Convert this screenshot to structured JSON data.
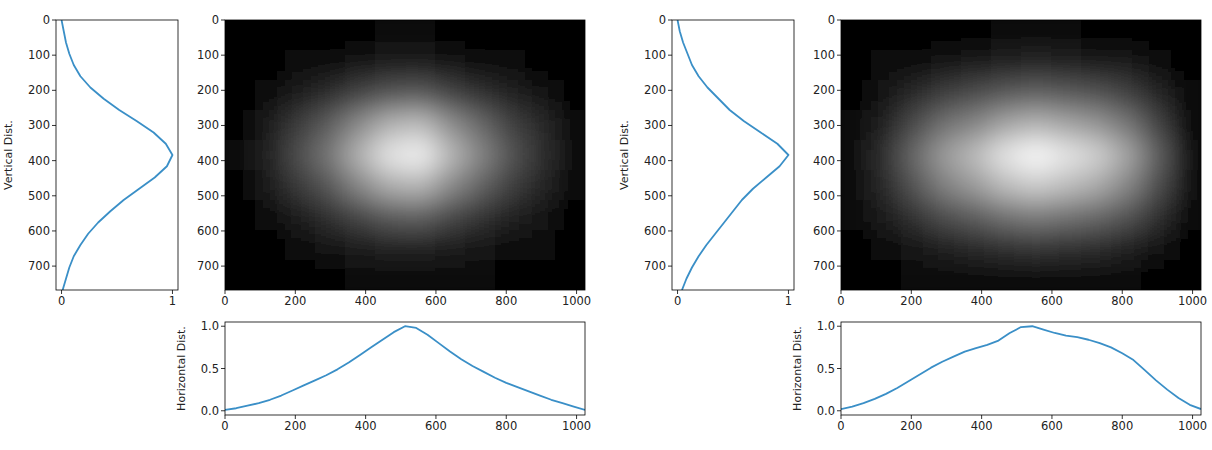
{
  "chart_data": [
    {
      "type": "line",
      "ylabel": "Vertical Dist.",
      "color": "#3a8fc7",
      "y": [
        0,
        32,
        64,
        96,
        128,
        160,
        192,
        224,
        256,
        288,
        320,
        352,
        384,
        416,
        448,
        480,
        512,
        544,
        576,
        608,
        640,
        672,
        704,
        736,
        768
      ],
      "values": [
        0.0,
        0.02,
        0.04,
        0.07,
        0.11,
        0.17,
        0.26,
        0.38,
        0.52,
        0.68,
        0.83,
        0.94,
        1.0,
        0.95,
        0.84,
        0.7,
        0.56,
        0.44,
        0.33,
        0.24,
        0.17,
        0.11,
        0.07,
        0.04,
        0.01
      ],
      "xlim": [
        -0.05,
        1.05
      ],
      "xticks": [
        0,
        1
      ],
      "ylim": [
        0,
        768
      ],
      "yticks": [
        0,
        100,
        200,
        300,
        400,
        500,
        600,
        700
      ]
    },
    {
      "type": "heatmap",
      "xlim": [
        0,
        1024
      ],
      "xticks": [
        0,
        200,
        400,
        600,
        800,
        1000
      ],
      "ylim": [
        0,
        768
      ],
      "yticks": [
        0,
        100,
        200,
        300,
        400,
        500,
        600,
        700
      ],
      "zlim": [
        0,
        1
      ],
      "cells": [
        [
          0.0,
          0.0,
          0.01,
          0.01,
          0.02,
          0.03,
          0.03,
          0.02,
          0.02,
          0.01,
          0.01,
          0.0
        ],
        [
          0.0,
          0.02,
          0.04,
          0.06,
          0.08,
          0.11,
          0.11,
          0.09,
          0.06,
          0.04,
          0.02,
          0.01
        ],
        [
          0.01,
          0.05,
          0.12,
          0.18,
          0.27,
          0.34,
          0.36,
          0.27,
          0.2,
          0.13,
          0.08,
          0.02
        ],
        [
          0.02,
          0.1,
          0.24,
          0.37,
          0.55,
          0.7,
          0.74,
          0.56,
          0.41,
          0.26,
          0.16,
          0.04
        ],
        [
          0.03,
          0.13,
          0.31,
          0.47,
          0.7,
          0.9,
          0.95,
          0.72,
          0.52,
          0.33,
          0.2,
          0.05
        ],
        [
          0.02,
          0.1,
          0.23,
          0.35,
          0.53,
          0.68,
          0.71,
          0.54,
          0.39,
          0.25,
          0.15,
          0.04
        ],
        [
          0.01,
          0.05,
          0.12,
          0.19,
          0.28,
          0.36,
          0.38,
          0.29,
          0.21,
          0.13,
          0.08,
          0.02
        ],
        [
          0.0,
          0.02,
          0.05,
          0.07,
          0.11,
          0.14,
          0.14,
          0.11,
          0.08,
          0.05,
          0.03,
          0.01
        ],
        [
          0.0,
          0.01,
          0.02,
          0.02,
          0.04,
          0.05,
          0.05,
          0.04,
          0.03,
          0.02,
          0.01,
          0.0
        ]
      ]
    },
    {
      "type": "line",
      "ylabel": "Horizontal Dist.",
      "color": "#3a8fc7",
      "x": [
        0,
        32,
        64,
        96,
        128,
        160,
        192,
        224,
        256,
        288,
        320,
        352,
        384,
        416,
        448,
        480,
        512,
        544,
        576,
        608,
        640,
        672,
        704,
        736,
        768,
        800,
        832,
        864,
        896,
        928,
        960,
        992,
        1024
      ],
      "values": [
        0.01,
        0.03,
        0.06,
        0.09,
        0.13,
        0.18,
        0.24,
        0.3,
        0.36,
        0.42,
        0.49,
        0.57,
        0.66,
        0.75,
        0.84,
        0.93,
        1.0,
        0.98,
        0.9,
        0.8,
        0.7,
        0.61,
        0.53,
        0.46,
        0.39,
        0.33,
        0.28,
        0.23,
        0.18,
        0.13,
        0.09,
        0.05,
        0.01
      ],
      "xlim": [
        0,
        1024
      ],
      "xticks": [
        0,
        200,
        400,
        600,
        800,
        1000
      ],
      "ylim": [
        -0.05,
        1.05
      ],
      "yticks": [
        {
          "value": 0,
          "label": "0.0"
        },
        {
          "value": 0.5,
          "label": "0.5"
        },
        {
          "value": 1,
          "label": "1.0"
        }
      ]
    },
    {
      "type": "line",
      "ylabel": "Vertical Dist.",
      "color": "#3a8fc7",
      "y": [
        0,
        32,
        64,
        96,
        128,
        160,
        192,
        224,
        256,
        288,
        320,
        352,
        384,
        416,
        448,
        480,
        512,
        544,
        576,
        608,
        640,
        672,
        704,
        736,
        768
      ],
      "values": [
        0.0,
        0.02,
        0.05,
        0.09,
        0.13,
        0.19,
        0.27,
        0.37,
        0.47,
        0.6,
        0.75,
        0.9,
        1.0,
        0.92,
        0.8,
        0.68,
        0.58,
        0.5,
        0.42,
        0.34,
        0.26,
        0.19,
        0.13,
        0.08,
        0.04
      ],
      "xlim": [
        -0.05,
        1.05
      ],
      "xticks": [
        0,
        1
      ],
      "ylim": [
        0,
        768
      ],
      "yticks": [
        0,
        100,
        200,
        300,
        400,
        500,
        600,
        700
      ]
    },
    {
      "type": "heatmap",
      "xlim": [
        0,
        1024
      ],
      "xticks": [
        0,
        200,
        400,
        600,
        800,
        1000
      ],
      "ylim": [
        0,
        768
      ],
      "yticks": [
        0,
        100,
        200,
        300,
        400,
        500,
        600,
        700
      ],
      "zlim": [
        0,
        1
      ],
      "cells": [
        [
          0.0,
          0.01,
          0.01,
          0.02,
          0.02,
          0.03,
          0.03,
          0.03,
          0.02,
          0.02,
          0.01,
          0.0
        ],
        [
          0.01,
          0.03,
          0.06,
          0.09,
          0.11,
          0.14,
          0.15,
          0.14,
          0.12,
          0.1,
          0.06,
          0.01
        ],
        [
          0.02,
          0.08,
          0.17,
          0.25,
          0.3,
          0.36,
          0.39,
          0.36,
          0.33,
          0.26,
          0.15,
          0.03
        ],
        [
          0.04,
          0.14,
          0.3,
          0.45,
          0.53,
          0.65,
          0.71,
          0.65,
          0.59,
          0.47,
          0.27,
          0.06
        ],
        [
          0.05,
          0.2,
          0.42,
          0.62,
          0.74,
          0.9,
          0.98,
          0.9,
          0.82,
          0.65,
          0.38,
          0.08
        ],
        [
          0.04,
          0.16,
          0.34,
          0.51,
          0.61,
          0.74,
          0.8,
          0.74,
          0.67,
          0.53,
          0.31,
          0.07
        ],
        [
          0.03,
          0.1,
          0.21,
          0.31,
          0.37,
          0.45,
          0.49,
          0.45,
          0.41,
          0.33,
          0.19,
          0.04
        ],
        [
          0.01,
          0.04,
          0.09,
          0.14,
          0.16,
          0.2,
          0.22,
          0.2,
          0.18,
          0.14,
          0.08,
          0.02
        ],
        [
          0.0,
          0.01,
          0.03,
          0.04,
          0.04,
          0.05,
          0.06,
          0.05,
          0.05,
          0.04,
          0.02,
          0.0
        ]
      ]
    },
    {
      "type": "line",
      "ylabel": "Horizontal Dist.",
      "color": "#3a8fc7",
      "x": [
        0,
        32,
        64,
        96,
        128,
        160,
        192,
        224,
        256,
        288,
        320,
        352,
        384,
        416,
        448,
        480,
        512,
        544,
        576,
        608,
        640,
        672,
        704,
        736,
        768,
        800,
        832,
        864,
        896,
        928,
        960,
        992,
        1024
      ],
      "values": [
        0.02,
        0.05,
        0.09,
        0.14,
        0.2,
        0.27,
        0.35,
        0.43,
        0.51,
        0.58,
        0.64,
        0.7,
        0.74,
        0.78,
        0.83,
        0.92,
        0.99,
        1.0,
        0.96,
        0.92,
        0.89,
        0.87,
        0.84,
        0.8,
        0.75,
        0.68,
        0.6,
        0.48,
        0.36,
        0.25,
        0.15,
        0.07,
        0.02
      ],
      "xlim": [
        0,
        1024
      ],
      "xticks": [
        0,
        200,
        400,
        600,
        800,
        1000
      ],
      "ylim": [
        -0.05,
        1.05
      ],
      "yticks": [
        {
          "value": 0,
          "label": "0.0"
        },
        {
          "value": 0.5,
          "label": "0.5"
        },
        {
          "value": 1,
          "label": "1.0"
        }
      ]
    }
  ]
}
